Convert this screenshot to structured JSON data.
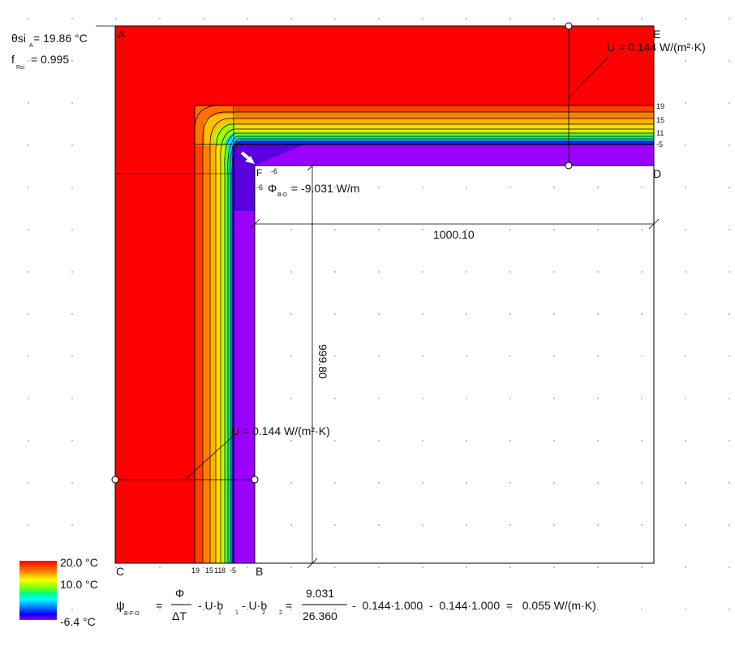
{
  "results": {
    "theta_si_label": "θsi",
    "theta_si_sub": "A",
    "theta_si_value": "= 19.86 °C",
    "frsi_label": "f",
    "frsi_sub": "Rsi",
    "frsi_value": "= 0.995"
  },
  "points": {
    "A": "A",
    "B": "B",
    "C": "C",
    "D": "D",
    "E": "E",
    "F": "F"
  },
  "u_top": "U = 0.144 W/(m²·K)",
  "u_left": "U = 0.144 W/(m²·K)",
  "flux": {
    "label": "Φ",
    "sub": "B-D",
    "value": "= -9.031 W/m",
    "minus6_a": "-6",
    "minus6_b": "-6"
  },
  "dimensions": {
    "horizontal": "1000.10",
    "vertical": "999.80"
  },
  "iso_labels_top": [
    "19",
    "15",
    "11",
    "-5"
  ],
  "iso_labels_bottom": [
    "19",
    "15",
    "11",
    "8",
    "-5"
  ],
  "legend": {
    "max": "20.0 °C",
    "mid": "10.0 °C",
    "min": "-6.4 °C"
  },
  "formula": {
    "psi": "ψ",
    "psi_sub": "B-F-D",
    "eq": "=",
    "num1": "Φ",
    "den1": "ΔT",
    "term_u1": "- U·b",
    "sub_u1": "1",
    "sub_b1": "1",
    "term_u2": "- U·b",
    "sub_u2": "2",
    "sub_b2": "2",
    "eq2": "=",
    "num2": "9.031",
    "den2": "26.360",
    "rest": "-  0.144·1.000  -  0.144·1.000  =   0.055 W/(m·K)"
  },
  "colors": {
    "warm": "#ff0000",
    "cold": "#9900ff",
    "grid_dot": "#9a9a9a"
  }
}
